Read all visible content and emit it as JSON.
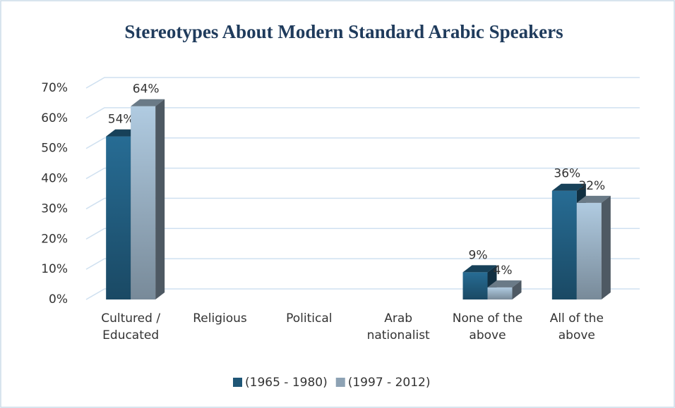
{
  "chart_data": {
    "type": "bar3d",
    "title": "Stereotypes About Modern Standard Arabic Speakers",
    "categories": [
      "Cultured / Educated",
      "Religious",
      "Political",
      "Arab nationalist",
      "None of the above",
      "All of the above"
    ],
    "series": [
      {
        "name": "(1965 - 1980)",
        "color": "#1f5676",
        "values": [
          54,
          null,
          null,
          null,
          9,
          36
        ],
        "value_labels": [
          "54%",
          null,
          null,
          null,
          "9%",
          "36%"
        ]
      },
      {
        "name": "(1997 - 2012)",
        "color": "#8da2b4",
        "values": [
          64,
          null,
          null,
          null,
          4,
          32
        ],
        "value_labels": [
          "64%",
          null,
          null,
          null,
          "4%",
          "32%"
        ]
      }
    ],
    "ylim": [
      0,
      70
    ],
    "yticks": [
      {
        "value": 0,
        "label": "0%"
      },
      {
        "value": 10,
        "label": "10%"
      },
      {
        "value": 20,
        "label": "20%"
      },
      {
        "value": 30,
        "label": "30%"
      },
      {
        "value": 40,
        "label": "40%"
      },
      {
        "value": 50,
        "label": "50%"
      },
      {
        "value": 60,
        "label": "60%"
      },
      {
        "value": 70,
        "label": "70%"
      }
    ],
    "grid": true,
    "legend": "bottom"
  }
}
